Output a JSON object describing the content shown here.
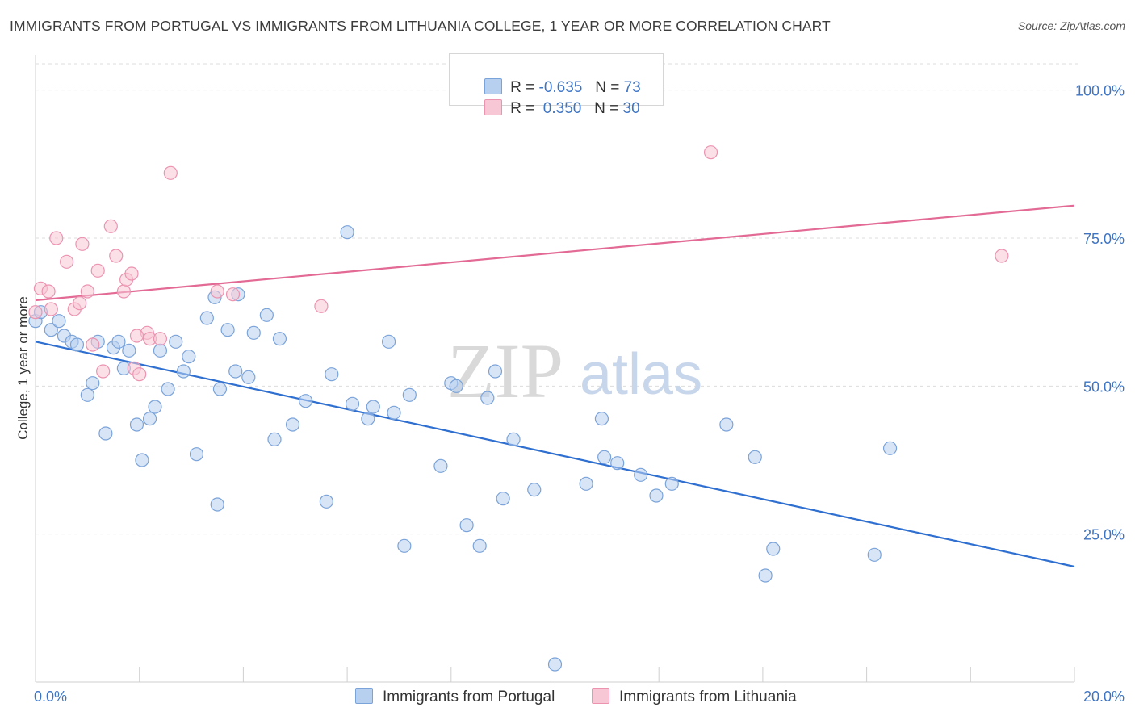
{
  "title": "IMMIGRANTS FROM PORTUGAL VS IMMIGRANTS FROM LITHUANIA COLLEGE, 1 YEAR OR MORE CORRELATION CHART",
  "source": "Source: ZipAtlas.com",
  "watermark": {
    "zip": "ZIP",
    "atlas": "atlas"
  },
  "legend_stats": [
    {
      "r_label": "R = ",
      "r_value": "-0.635",
      "n_label": "N = ",
      "n_value": "73"
    },
    {
      "r_label": "R = ",
      "r_value": " 0.350",
      "n_label": "N = ",
      "n_value": "30"
    }
  ],
  "colors": {
    "portugal_fill": "#b8d0f0",
    "portugal_stroke": "#7aa3d9",
    "portugal_line": "#2f6fd0",
    "lithuania_fill": "#f8c7d6",
    "lithuania_stroke": "#ec93b0",
    "lithuania_line": "#e26a94",
    "grid": "#dcdcdc",
    "tick_text": "#3d74c4"
  },
  "chart_data": {
    "type": "scatter",
    "title": "IMMIGRANTS FROM PORTUGAL VS IMMIGRANTS FROM LITHUANIA COLLEGE, 1 YEAR OR MORE CORRELATION CHART",
    "xlabel": "",
    "ylabel": "College, 1 year or more",
    "xlim": [
      0,
      20
    ],
    "ylim": [
      0,
      105
    ],
    "x_ticks": [
      "0.0%",
      "20.0%"
    ],
    "y_ticks": [
      {
        "value": 25,
        "label": "25.0%"
      },
      {
        "value": 50,
        "label": "50.0%"
      },
      {
        "value": 75,
        "label": "75.0%"
      },
      {
        "value": 100,
        "label": "100.0%"
      }
    ],
    "grid": true,
    "legend_position": "bottom",
    "series": [
      {
        "name": "Immigrants from Portugal",
        "color": "#7aa3d9",
        "trend": {
          "x": [
            0,
            20
          ],
          "y": [
            57.5,
            19.5
          ]
        },
        "points": [
          [
            0,
            61
          ],
          [
            0.1,
            62.5
          ],
          [
            0.3,
            59.5
          ],
          [
            0.45,
            61
          ],
          [
            0.55,
            58.5
          ],
          [
            0.7,
            57.5
          ],
          [
            0.8,
            57
          ],
          [
            1.0,
            48.5
          ],
          [
            1.1,
            50.5
          ],
          [
            1.2,
            57.5
          ],
          [
            1.35,
            42
          ],
          [
            1.5,
            56.5
          ],
          [
            1.6,
            57.5
          ],
          [
            1.7,
            53
          ],
          [
            1.8,
            56
          ],
          [
            1.95,
            43.5
          ],
          [
            2.05,
            37.5
          ],
          [
            2.2,
            44.5
          ],
          [
            2.3,
            46.5
          ],
          [
            2.4,
            56
          ],
          [
            2.55,
            49.5
          ],
          [
            2.7,
            57.5
          ],
          [
            2.85,
            52.5
          ],
          [
            2.95,
            55
          ],
          [
            3.1,
            38.5
          ],
          [
            3.3,
            61.5
          ],
          [
            3.45,
            65
          ],
          [
            3.5,
            30
          ],
          [
            3.55,
            49.5
          ],
          [
            3.7,
            59.5
          ],
          [
            3.85,
            52.5
          ],
          [
            3.9,
            65.5
          ],
          [
            4.1,
            51.5
          ],
          [
            4.2,
            59
          ],
          [
            4.45,
            62
          ],
          [
            4.6,
            41
          ],
          [
            4.7,
            58
          ],
          [
            4.95,
            43.5
          ],
          [
            5.2,
            47.5
          ],
          [
            5.6,
            30.5
          ],
          [
            5.7,
            52
          ],
          [
            6.0,
            76
          ],
          [
            6.1,
            47
          ],
          [
            6.4,
            44.5
          ],
          [
            6.5,
            46.5
          ],
          [
            6.8,
            57.5
          ],
          [
            6.9,
            45.5
          ],
          [
            7.1,
            23
          ],
          [
            7.2,
            48.5
          ],
          [
            7.8,
            36.5
          ],
          [
            8.0,
            50.5
          ],
          [
            8.1,
            50
          ],
          [
            8.3,
            26.5
          ],
          [
            8.55,
            23
          ],
          [
            8.7,
            48
          ],
          [
            8.85,
            52.5
          ],
          [
            9.0,
            31
          ],
          [
            9.2,
            41
          ],
          [
            9.6,
            32.5
          ],
          [
            10.0,
            3
          ],
          [
            10.6,
            33.5
          ],
          [
            10.9,
            44.5
          ],
          [
            10.95,
            38
          ],
          [
            11.2,
            37
          ],
          [
            11.65,
            35
          ],
          [
            11.95,
            31.5
          ],
          [
            12.25,
            33.5
          ],
          [
            13.3,
            43.5
          ],
          [
            13.85,
            38
          ],
          [
            14.05,
            18
          ],
          [
            14.2,
            22.5
          ],
          [
            16.15,
            21.5
          ],
          [
            16.45,
            39.5
          ]
        ]
      },
      {
        "name": "Immigrants from Lithuania",
        "color": "#ec93b0",
        "trend": {
          "x": [
            0,
            20
          ],
          "y": [
            64.5,
            80.5
          ]
        },
        "points": [
          [
            0,
            62.5
          ],
          [
            0.1,
            66.5
          ],
          [
            0.25,
            66
          ],
          [
            0.4,
            75
          ],
          [
            0.6,
            71
          ],
          [
            0.75,
            63
          ],
          [
            0.85,
            64
          ],
          [
            0.9,
            74
          ],
          [
            1.0,
            66
          ],
          [
            1.1,
            57
          ],
          [
            1.2,
            69.5
          ],
          [
            1.3,
            52.5
          ],
          [
            1.45,
            77
          ],
          [
            1.55,
            72
          ],
          [
            1.7,
            66
          ],
          [
            1.75,
            68
          ],
          [
            1.85,
            69
          ],
          [
            1.9,
            53
          ],
          [
            2.0,
            52
          ],
          [
            2.15,
            59
          ],
          [
            2.2,
            58
          ],
          [
            2.4,
            58
          ],
          [
            2.6,
            86
          ],
          [
            3.5,
            66
          ],
          [
            3.8,
            65.5
          ],
          [
            5.5,
            63.5
          ],
          [
            13.0,
            89.5
          ],
          [
            18.6,
            72
          ],
          [
            1.95,
            58.5
          ],
          [
            0.3,
            63
          ]
        ]
      }
    ]
  },
  "legend_bottom": [
    {
      "label": "Immigrants from Portugal"
    },
    {
      "label": "Immigrants from Lithuania"
    }
  ]
}
